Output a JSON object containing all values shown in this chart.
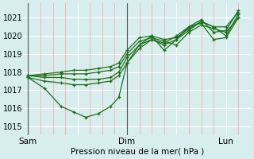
{
  "title": "Pression niveau de la mer( hPa )",
  "xlabel_ticks": [
    "Sam",
    "Dim",
    "Lun"
  ],
  "xlabel_tick_positions": [
    0,
    48,
    96
  ],
  "ylim": [
    1014.5,
    1021.8
  ],
  "yticks": [
    1015,
    1016,
    1017,
    1018,
    1019,
    1020,
    1021
  ],
  "xlim": [
    -2,
    108
  ],
  "bg_color": "#d8eeee",
  "grid_color_h": "#ffffff",
  "grid_color_v": "#ffaaaa",
  "line_color": "#1a6e1a",
  "lines": [
    [
      0,
      1017.7,
      8,
      1017.1,
      16,
      1016.1,
      22,
      1015.8,
      28,
      1015.5,
      34,
      1015.7,
      40,
      1016.1,
      44,
      1016.6,
      48,
      1018.5,
      54,
      1019.5,
      60,
      1020.0,
      66,
      1019.2,
      72,
      1019.8,
      78,
      1020.5,
      84,
      1020.9,
      90,
      1020.2,
      96,
      1020.3,
      102,
      1021.4
    ],
    [
      0,
      1017.7,
      8,
      1017.5,
      16,
      1017.4,
      22,
      1017.3,
      28,
      1017.3,
      34,
      1017.4,
      40,
      1017.5,
      44,
      1017.8,
      48,
      1018.5,
      54,
      1019.3,
      60,
      1019.8,
      66,
      1019.5,
      72,
      1019.8,
      78,
      1020.3,
      84,
      1020.8,
      90,
      1020.5,
      96,
      1020.0,
      102,
      1021.2
    ],
    [
      0,
      1017.8,
      8,
      1017.7,
      16,
      1017.7,
      22,
      1017.6,
      28,
      1017.6,
      34,
      1017.6,
      40,
      1017.7,
      44,
      1018.0,
      48,
      1018.8,
      54,
      1019.5,
      60,
      1019.8,
      66,
      1019.6,
      72,
      1020.0,
      78,
      1020.5,
      84,
      1020.7,
      90,
      1019.8,
      96,
      1019.9,
      102,
      1021.0
    ],
    [
      0,
      1017.8,
      8,
      1017.8,
      16,
      1017.9,
      22,
      1017.9,
      28,
      1017.9,
      34,
      1018.0,
      40,
      1018.1,
      44,
      1018.3,
      48,
      1019.0,
      54,
      1019.7,
      60,
      1019.9,
      66,
      1019.7,
      72,
      1019.5,
      78,
      1020.2,
      84,
      1020.6,
      90,
      1020.4,
      96,
      1020.2,
      102,
      1021.0
    ],
    [
      0,
      1017.8,
      8,
      1017.9,
      16,
      1018.0,
      22,
      1018.1,
      28,
      1018.1,
      34,
      1018.2,
      40,
      1018.3,
      44,
      1018.5,
      48,
      1019.2,
      54,
      1019.9,
      60,
      1020.0,
      66,
      1019.8,
      72,
      1019.9,
      78,
      1020.4,
      84,
      1020.8,
      90,
      1020.5,
      96,
      1020.5,
      102,
      1021.3
    ]
  ],
  "day_lines": [
    0,
    48
  ],
  "day_line_color": "#555555",
  "marker": "+",
  "markersize": 3,
  "linewidth": 0.9
}
